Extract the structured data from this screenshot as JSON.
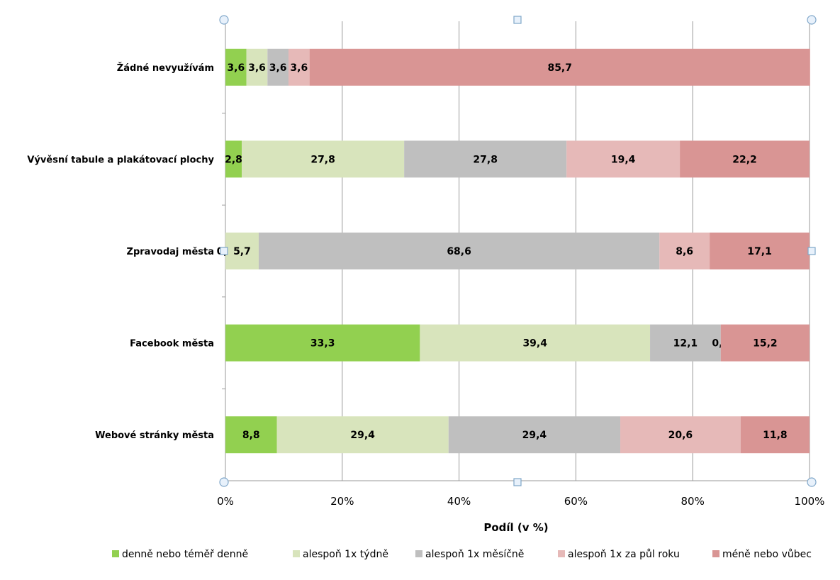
{
  "chart_data": {
    "type": "bar",
    "orientation": "horizontal",
    "stacked": "percent",
    "title": "",
    "xlabel": "Podíl (v %)",
    "ylabel": "",
    "xlim": [
      0,
      100
    ],
    "x_ticks": [
      "0%",
      "20%",
      "40%",
      "60%",
      "80%",
      "100%"
    ],
    "grid": true,
    "legend_position": "bottom",
    "categories": [
      "Žádné nevyužívám",
      "Vývěsní tabule a plakátovací plochy",
      "Zpravodaj města",
      "Facebook města",
      "Webové stránky města"
    ],
    "series": [
      {
        "name": "denně nebo téměř denně",
        "color": "#92d050",
        "values": [
          3.6,
          2.8,
          0.0,
          33.3,
          8.8
        ],
        "labels": [
          "3,6",
          "2,8",
          "0,0",
          "33,3",
          "8,8"
        ]
      },
      {
        "name": "alespoň 1x týdně",
        "color": "#d8e4bc",
        "values": [
          3.6,
          27.8,
          5.7,
          39.4,
          29.4
        ],
        "labels": [
          "3,6",
          "27,8",
          "5,7",
          "39,4",
          "29,4"
        ]
      },
      {
        "name": "alespoň 1x měsíčně",
        "color": "#bfbfbf",
        "values": [
          3.6,
          27.8,
          68.6,
          12.1,
          29.4
        ],
        "labels": [
          "3,6",
          "27,8",
          "68,6",
          "12,1",
          "29,4"
        ]
      },
      {
        "name": "alespoň 1x za půl roku",
        "color": "#e6b9b8",
        "values": [
          3.6,
          19.4,
          8.6,
          0.0,
          20.6
        ],
        "labels": [
          "3,6",
          "19,4",
          "8,6",
          "0,0",
          "20,6"
        ]
      },
      {
        "name": "méně nebo vůbec",
        "color": "#d99594",
        "values": [
          85.7,
          22.2,
          17.1,
          15.2,
          11.8
        ],
        "labels": [
          "85,7",
          "22,2",
          "17,1",
          "15,2",
          "11,8"
        ]
      }
    ]
  }
}
